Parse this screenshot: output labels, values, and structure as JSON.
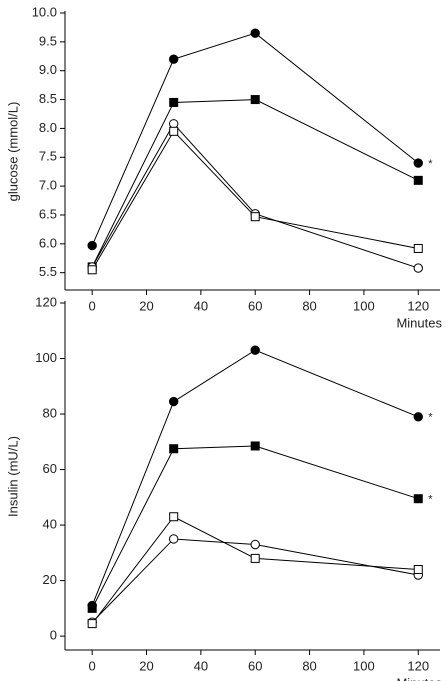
{
  "chart_data": [
    {
      "type": "line",
      "ylabel": "glucose (mmol/L)",
      "xlabel": "Minutes",
      "x": [
        0,
        30,
        60,
        120
      ],
      "xlim": [
        -10,
        128
      ],
      "xticks": [
        0,
        20,
        40,
        60,
        80,
        100,
        120
      ],
      "ylim": [
        5.2,
        10.0
      ],
      "yticks": [
        5.5,
        {
          "value": 6.0,
          "label": "6.0"
        },
        6.5,
        {
          "value": 7.0,
          "label": "7.0"
        },
        7.5,
        {
          "value": 8.0,
          "label": "8.0"
        },
        8.5,
        {
          "value": 9.0,
          "label": "9.0"
        },
        9.5,
        {
          "value": 10.0,
          "label": "10.0"
        }
      ],
      "series": [
        {
          "color": "#000000",
          "marker": "circle",
          "filled": true,
          "values": [
            5.97,
            9.2,
            9.65,
            7.4
          ]
        },
        {
          "color": "#000000",
          "marker": "square",
          "filled": true,
          "values": [
            5.6,
            8.45,
            8.5,
            7.1
          ]
        },
        {
          "color": "#000000",
          "marker": "circle",
          "filled": false,
          "values": [
            5.6,
            8.08,
            6.52,
            5.58
          ]
        },
        {
          "color": "#000000",
          "marker": "square",
          "filled": false,
          "values": [
            5.55,
            7.95,
            6.47,
            5.92
          ]
        }
      ],
      "annotations": [
        {
          "text": "*",
          "series": 0
        }
      ]
    },
    {
      "type": "line",
      "ylabel": "Insulin (mU/L)",
      "xlabel": "Minutes",
      "x": [
        0,
        30,
        60,
        120
      ],
      "xlim": [
        -10,
        128
      ],
      "xticks": [
        0,
        20,
        40,
        60,
        80,
        100,
        120
      ],
      "ylim": [
        -5,
        120
      ],
      "yticks": [
        0,
        20,
        40,
        60,
        80,
        100,
        120
      ],
      "series": [
        {
          "color": "#000000",
          "marker": "circle",
          "filled": true,
          "values": [
            11,
            84.5,
            103,
            79
          ]
        },
        {
          "color": "#000000",
          "marker": "square",
          "filled": true,
          "values": [
            10,
            67.5,
            68.5,
            49.5
          ]
        },
        {
          "color": "#000000",
          "marker": "circle",
          "filled": false,
          "values": [
            5,
            35,
            33,
            22
          ]
        },
        {
          "color": "#000000",
          "marker": "square",
          "filled": false,
          "values": [
            4.5,
            43,
            28,
            24
          ]
        }
      ],
      "annotations": [
        {
          "text": "*",
          "series": 0
        },
        {
          "text": "*",
          "series": 1
        }
      ]
    }
  ]
}
